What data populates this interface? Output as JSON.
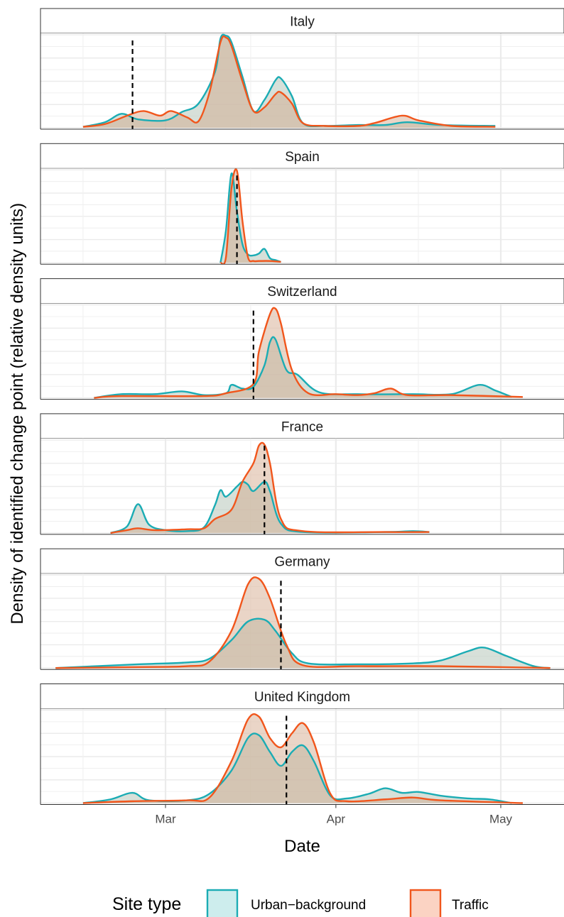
{
  "chart_data": {
    "type": "area",
    "xlabel": "Date",
    "ylabel": "Density of identified change point (relative density units)",
    "x_ticks": [
      {
        "label": "Mar",
        "date": "2020-03-01"
      },
      {
        "label": "Apr",
        "date": "2020-04-01"
      },
      {
        "label": "May",
        "date": "2020-05-01"
      }
    ],
    "xlim": [
      "2020-02-08",
      "2020-05-14"
    ],
    "ylim": [
      0,
      1
    ],
    "grid": true,
    "legend": {
      "title": "Site type",
      "position": "bottom",
      "entries": [
        {
          "label": "Urban−background",
          "series": "urban",
          "line": "#1bacb4",
          "fill": "#cdeded"
        },
        {
          "label": "Traffic",
          "series": "traffic",
          "line": "#f1561c",
          "fill": "#fbd3c3"
        }
      ]
    },
    "panels": [
      {
        "title": "Italy",
        "vline": "2020-02-24",
        "urban": [
          [
            "2020-02-15",
            0.01
          ],
          [
            "2020-02-19",
            0.06
          ],
          [
            "2020-02-22",
            0.15
          ],
          [
            "2020-02-25",
            0.09
          ],
          [
            "2020-03-01",
            0.08
          ],
          [
            "2020-03-04",
            0.17
          ],
          [
            "2020-03-07",
            0.26
          ],
          [
            "2020-03-10",
            0.6
          ],
          [
            "2020-03-11",
            0.96
          ],
          [
            "2020-03-12",
            0.99
          ],
          [
            "2020-03-13",
            0.92
          ],
          [
            "2020-03-15",
            0.55
          ],
          [
            "2020-03-17",
            0.18
          ],
          [
            "2020-03-19",
            0.3
          ],
          [
            "2020-03-21",
            0.51
          ],
          [
            "2020-03-22",
            0.53
          ],
          [
            "2020-03-24",
            0.34
          ],
          [
            "2020-03-26",
            0.05
          ],
          [
            "2020-03-30",
            0.02
          ],
          [
            "2020-04-05",
            0.03
          ],
          [
            "2020-04-10",
            0.03
          ],
          [
            "2020-04-14",
            0.06
          ],
          [
            "2020-04-20",
            0.03
          ],
          [
            "2020-04-30",
            0.02
          ]
        ],
        "traffic": [
          [
            "2020-02-15",
            0.01
          ],
          [
            "2020-02-19",
            0.04
          ],
          [
            "2020-02-23",
            0.13
          ],
          [
            "2020-02-26",
            0.18
          ],
          [
            "2020-02-29",
            0.13
          ],
          [
            "2020-03-02",
            0.18
          ],
          [
            "2020-03-05",
            0.11
          ],
          [
            "2020-03-07",
            0.07
          ],
          [
            "2020-03-09",
            0.38
          ],
          [
            "2020-03-11",
            0.92
          ],
          [
            "2020-03-12",
            0.97
          ],
          [
            "2020-03-13",
            0.88
          ],
          [
            "2020-03-15",
            0.5
          ],
          [
            "2020-03-17",
            0.18
          ],
          [
            "2020-03-19",
            0.22
          ],
          [
            "2020-03-21",
            0.36
          ],
          [
            "2020-03-22",
            0.38
          ],
          [
            "2020-03-24",
            0.26
          ],
          [
            "2020-03-26",
            0.05
          ],
          [
            "2020-03-30",
            0.02
          ],
          [
            "2020-04-05",
            0.02
          ],
          [
            "2020-04-08",
            0.05
          ],
          [
            "2020-04-13",
            0.13
          ],
          [
            "2020-04-16",
            0.08
          ],
          [
            "2020-04-22",
            0.02
          ],
          [
            "2020-04-30",
            0.01
          ]
        ]
      },
      {
        "title": "Spain",
        "vline": "2020-03-14",
        "urban": [
          [
            "2020-03-11",
            0.0
          ],
          [
            "2020-03-12",
            0.35
          ],
          [
            "2020-03-13",
            0.96
          ],
          [
            "2020-03-14",
            0.55
          ],
          [
            "2020-03-15",
            0.2
          ],
          [
            "2020-03-16",
            0.09
          ],
          [
            "2020-03-17",
            0.08
          ],
          [
            "2020-03-18",
            0.1
          ],
          [
            "2020-03-19",
            0.15
          ],
          [
            "2020-03-20",
            0.05
          ],
          [
            "2020-03-21",
            0.03
          ],
          [
            "2020-03-22",
            0.01
          ]
        ],
        "traffic": [
          [
            "2020-03-11",
            0.0
          ],
          [
            "2020-03-12",
            0.06
          ],
          [
            "2020-03-13",
            0.8
          ],
          [
            "2020-03-14",
            0.99
          ],
          [
            "2020-03-15",
            0.45
          ],
          [
            "2020-03-16",
            0.06
          ],
          [
            "2020-03-17",
            0.02
          ],
          [
            "2020-03-18",
            0.02
          ],
          [
            "2020-03-20",
            0.02
          ],
          [
            "2020-03-22",
            0.01
          ]
        ]
      },
      {
        "title": "Switzerland",
        "vline": "2020-03-17",
        "urban": [
          [
            "2020-02-17",
            0.0
          ],
          [
            "2020-02-22",
            0.04
          ],
          [
            "2020-02-28",
            0.04
          ],
          [
            "2020-03-04",
            0.07
          ],
          [
            "2020-03-08",
            0.03
          ],
          [
            "2020-03-12",
            0.05
          ],
          [
            "2020-03-13",
            0.14
          ],
          [
            "2020-03-15",
            0.1
          ],
          [
            "2020-03-17",
            0.12
          ],
          [
            "2020-03-19",
            0.35
          ],
          [
            "2020-03-20",
            0.6
          ],
          [
            "2020-03-21",
            0.63
          ],
          [
            "2020-03-23",
            0.3
          ],
          [
            "2020-03-25",
            0.25
          ],
          [
            "2020-03-29",
            0.06
          ],
          [
            "2020-04-05",
            0.04
          ],
          [
            "2020-04-15",
            0.04
          ],
          [
            "2020-04-22",
            0.04
          ],
          [
            "2020-04-27",
            0.14
          ],
          [
            "2020-04-30",
            0.08
          ],
          [
            "2020-05-03",
            0.01
          ]
        ],
        "traffic": [
          [
            "2020-02-17",
            0.0
          ],
          [
            "2020-02-22",
            0.02
          ],
          [
            "2020-03-08",
            0.02
          ],
          [
            "2020-03-12",
            0.05
          ],
          [
            "2020-03-17",
            0.15
          ],
          [
            "2020-03-18",
            0.5
          ],
          [
            "2020-03-20",
            0.9
          ],
          [
            "2020-03-21",
            0.96
          ],
          [
            "2020-03-22",
            0.8
          ],
          [
            "2020-03-24",
            0.3
          ],
          [
            "2020-03-27",
            0.05
          ],
          [
            "2020-04-01",
            0.04
          ],
          [
            "2020-04-05",
            0.03
          ],
          [
            "2020-04-08",
            0.05
          ],
          [
            "2020-04-11",
            0.1
          ],
          [
            "2020-04-14",
            0.03
          ],
          [
            "2020-04-22",
            0.03
          ],
          [
            "2020-05-05",
            0.01
          ]
        ]
      },
      {
        "title": "France",
        "vline": "2020-03-19",
        "urban": [
          [
            "2020-02-20",
            0.0
          ],
          [
            "2020-02-23",
            0.07
          ],
          [
            "2020-02-25",
            0.31
          ],
          [
            "2020-02-27",
            0.09
          ],
          [
            "2020-03-01",
            0.03
          ],
          [
            "2020-03-05",
            0.02
          ],
          [
            "2020-03-08",
            0.06
          ],
          [
            "2020-03-10",
            0.3
          ],
          [
            "2020-03-11",
            0.46
          ],
          [
            "2020-03-12",
            0.39
          ],
          [
            "2020-03-14",
            0.5
          ],
          [
            "2020-03-15",
            0.55
          ],
          [
            "2020-03-16",
            0.52
          ],
          [
            "2020-03-17",
            0.45
          ],
          [
            "2020-03-19",
            0.55
          ],
          [
            "2020-03-20",
            0.45
          ],
          [
            "2020-03-22",
            0.1
          ],
          [
            "2020-03-26",
            0.01
          ],
          [
            "2020-04-10",
            0.01
          ],
          [
            "2020-04-15",
            0.02
          ],
          [
            "2020-04-18",
            0.01
          ]
        ],
        "traffic": [
          [
            "2020-02-20",
            0.0
          ],
          [
            "2020-02-23",
            0.03
          ],
          [
            "2020-02-25",
            0.05
          ],
          [
            "2020-02-28",
            0.03
          ],
          [
            "2020-03-05",
            0.04
          ],
          [
            "2020-03-08",
            0.05
          ],
          [
            "2020-03-10",
            0.15
          ],
          [
            "2020-03-13",
            0.25
          ],
          [
            "2020-03-15",
            0.55
          ],
          [
            "2020-03-17",
            0.75
          ],
          [
            "2020-03-18",
            0.94
          ],
          [
            "2020-03-19",
            0.95
          ],
          [
            "2020-03-20",
            0.75
          ],
          [
            "2020-03-22",
            0.15
          ],
          [
            "2020-03-26",
            0.02
          ],
          [
            "2020-04-10",
            0.01
          ],
          [
            "2020-04-18",
            0.01
          ]
        ]
      },
      {
        "title": "Germany",
        "vline": "2020-03-22",
        "urban": [
          [
            "2020-02-10",
            0.0
          ],
          [
            "2020-02-25",
            0.04
          ],
          [
            "2020-03-05",
            0.06
          ],
          [
            "2020-03-09",
            0.1
          ],
          [
            "2020-03-13",
            0.3
          ],
          [
            "2020-03-16",
            0.5
          ],
          [
            "2020-03-19",
            0.52
          ],
          [
            "2020-03-21",
            0.4
          ],
          [
            "2020-03-24",
            0.16
          ],
          [
            "2020-03-27",
            0.05
          ],
          [
            "2020-04-05",
            0.04
          ],
          [
            "2020-04-15",
            0.05
          ],
          [
            "2020-04-20",
            0.08
          ],
          [
            "2020-04-25",
            0.18
          ],
          [
            "2020-04-28",
            0.22
          ],
          [
            "2020-05-02",
            0.13
          ],
          [
            "2020-05-07",
            0.02
          ],
          [
            "2020-05-10",
            0.0
          ]
        ],
        "traffic": [
          [
            "2020-02-10",
            0.0
          ],
          [
            "2020-02-25",
            0.01
          ],
          [
            "2020-03-05",
            0.02
          ],
          [
            "2020-03-09",
            0.07
          ],
          [
            "2020-03-13",
            0.4
          ],
          [
            "2020-03-16",
            0.9
          ],
          [
            "2020-03-18",
            0.96
          ],
          [
            "2020-03-20",
            0.75
          ],
          [
            "2020-03-23",
            0.25
          ],
          [
            "2020-03-26",
            0.03
          ],
          [
            "2020-04-05",
            0.02
          ],
          [
            "2020-04-20",
            0.02
          ],
          [
            "2020-05-10",
            0.0
          ]
        ]
      },
      {
        "title": "United Kingdom",
        "vline": "2020-03-23",
        "urban": [
          [
            "2020-02-15",
            0.0
          ],
          [
            "2020-02-20",
            0.04
          ],
          [
            "2020-02-24",
            0.11
          ],
          [
            "2020-02-27",
            0.03
          ],
          [
            "2020-03-05",
            0.03
          ],
          [
            "2020-03-09",
            0.1
          ],
          [
            "2020-03-13",
            0.35
          ],
          [
            "2020-03-16",
            0.7
          ],
          [
            "2020-03-18",
            0.73
          ],
          [
            "2020-03-20",
            0.55
          ],
          [
            "2020-03-22",
            0.4
          ],
          [
            "2020-03-24",
            0.55
          ],
          [
            "2020-03-26",
            0.62
          ],
          [
            "2020-03-28",
            0.45
          ],
          [
            "2020-03-31",
            0.08
          ],
          [
            "2020-04-03",
            0.05
          ],
          [
            "2020-04-07",
            0.1
          ],
          [
            "2020-04-10",
            0.16
          ],
          [
            "2020-04-13",
            0.11
          ],
          [
            "2020-04-16",
            0.12
          ],
          [
            "2020-04-20",
            0.08
          ],
          [
            "2020-04-25",
            0.05
          ],
          [
            "2020-04-29",
            0.04
          ],
          [
            "2020-05-03",
            0.0
          ]
        ],
        "traffic": [
          [
            "2020-02-15",
            0.0
          ],
          [
            "2020-02-24",
            0.02
          ],
          [
            "2020-03-05",
            0.03
          ],
          [
            "2020-03-09",
            0.06
          ],
          [
            "2020-03-13",
            0.45
          ],
          [
            "2020-03-16",
            0.9
          ],
          [
            "2020-03-18",
            0.93
          ],
          [
            "2020-03-20",
            0.7
          ],
          [
            "2020-03-22",
            0.6
          ],
          [
            "2020-03-24",
            0.75
          ],
          [
            "2020-03-26",
            0.86
          ],
          [
            "2020-03-28",
            0.65
          ],
          [
            "2020-03-31",
            0.1
          ],
          [
            "2020-04-03",
            0.02
          ],
          [
            "2020-04-10",
            0.04
          ],
          [
            "2020-04-15",
            0.06
          ],
          [
            "2020-04-20",
            0.03
          ],
          [
            "2020-05-05",
            0.0
          ]
        ]
      }
    ]
  }
}
